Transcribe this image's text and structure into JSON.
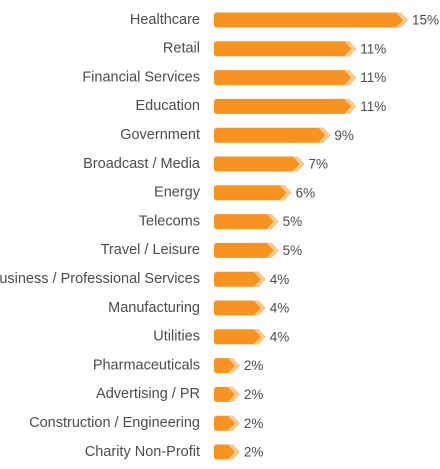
{
  "colors": {
    "bar": "#f7931e",
    "bar_tip": "#fcc98c",
    "text": "#4d4d4d"
  },
  "chart_data": {
    "type": "bar",
    "orientation": "horizontal",
    "title": "",
    "xlabel": "",
    "ylabel": "",
    "value_suffix": "%",
    "xlim": [
      0,
      15
    ],
    "grid": false,
    "legend": "none",
    "categories": [
      "Healthcare",
      "Retail",
      "Financial Services",
      "Education",
      "Government",
      "Broadcast / Media",
      "Energy",
      "Telecoms",
      "Travel / Leisure",
      "Business / Professional Services",
      "Manufacturing",
      "Utilities",
      "Pharmaceuticals",
      "Advertising / PR",
      "Construction / Engineering",
      "Charity Non-Profit"
    ],
    "values": [
      15,
      11,
      11,
      11,
      9,
      7,
      6,
      5,
      5,
      4,
      4,
      4,
      2,
      2,
      2,
      2
    ],
    "value_labels": [
      "15%",
      "11%",
      "11%",
      "11%",
      "9%",
      "7%",
      "6%",
      "5%",
      "5%",
      "4%",
      "4%",
      "4%",
      "2%",
      "2%",
      "2%",
      "2%"
    ]
  }
}
